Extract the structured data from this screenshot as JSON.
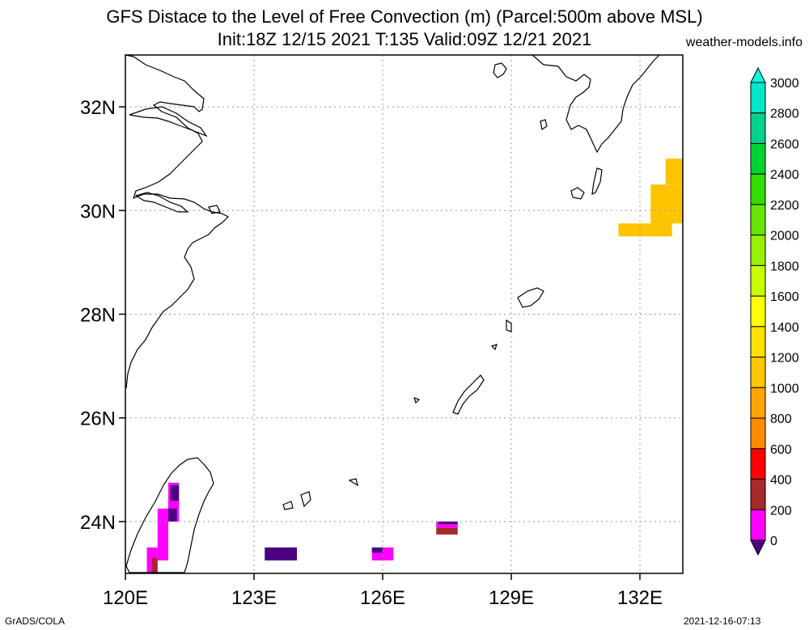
{
  "title_line1": "GFS Distace to the Level of Free Convection (m) (Parcel:500m above MSL)",
  "title_line2": "Init:18Z 12/15 2021 T:135 Valid:09Z 12/21 2021",
  "credit": "weather-models.info",
  "footer_left": "GrADS/COLA",
  "footer_right": "2021-12-16-07:13",
  "map": {
    "lon_range": [
      120,
      133
    ],
    "lat_range": [
      23,
      33
    ],
    "lon_ticks": [
      {
        "value": 120,
        "label": "120E"
      },
      {
        "value": 123,
        "label": "123E"
      },
      {
        "value": 126,
        "label": "126E"
      },
      {
        "value": 129,
        "label": "129E"
      },
      {
        "value": 132,
        "label": "132E"
      }
    ],
    "lat_ticks": [
      {
        "value": 24,
        "label": "24N"
      },
      {
        "value": 26,
        "label": "26N"
      },
      {
        "value": 28,
        "label": "28N"
      },
      {
        "value": 30,
        "label": "30N"
      },
      {
        "value": 32,
        "label": "32N"
      }
    ],
    "grid": true
  },
  "colorbar": {
    "levels": [
      {
        "label": "0",
        "color": "#4b0082"
      },
      {
        "label": "200",
        "color": "#ff00ff"
      },
      {
        "label": "400",
        "color": "#a52a2a"
      },
      {
        "label": "600",
        "color": "#ff0000"
      },
      {
        "label": "800",
        "color": "#ff8c00"
      },
      {
        "label": "1000",
        "color": "#ffa500"
      },
      {
        "label": "1200",
        "color": "#ffc800"
      },
      {
        "label": "1400",
        "color": "#ffe000"
      },
      {
        "label": "1600",
        "color": "#ffff00"
      },
      {
        "label": "1800",
        "color": "#c8ff00"
      },
      {
        "label": "2000",
        "color": "#96f000"
      },
      {
        "label": "2200",
        "color": "#64e600"
      },
      {
        "label": "2400",
        "color": "#32dc00"
      },
      {
        "label": "2600",
        "color": "#00d232"
      },
      {
        "label": "2800",
        "color": "#00d28c"
      },
      {
        "label": "3000",
        "color": "#00e6c8"
      }
    ],
    "top_color": "#00ffe0"
  },
  "field_cells": [
    {
      "lon": [
        131.5,
        132.75
      ],
      "lat": [
        29.5,
        29.75
      ],
      "color": "#ffc400"
    },
    {
      "lon": [
        132.25,
        133.0
      ],
      "lat": [
        29.75,
        30.5
      ],
      "color": "#ffc400"
    },
    {
      "lon": [
        132.6,
        133.0
      ],
      "lat": [
        30.5,
        31.0
      ],
      "color": "#ffc400"
    },
    {
      "lon": [
        121.0,
        121.25
      ],
      "lat": [
        24.0,
        24.75
      ],
      "color": "#ff00ff"
    },
    {
      "lon": [
        121.0,
        121.2
      ],
      "lat": [
        24.0,
        24.25
      ],
      "color": "#4b0082"
    },
    {
      "lon": [
        121.05,
        121.25
      ],
      "lat": [
        24.4,
        24.7
      ],
      "color": "#4b0082"
    },
    {
      "lon": [
        120.75,
        121.0
      ],
      "lat": [
        23.25,
        24.25
      ],
      "color": "#ff00ff"
    },
    {
      "lon": [
        120.5,
        120.75
      ],
      "lat": [
        23.0,
        23.5
      ],
      "color": "#ff00ff"
    },
    {
      "lon": [
        120.62,
        120.75
      ],
      "lat": [
        23.0,
        23.3
      ],
      "color": "#a52a2a"
    },
    {
      "lon": [
        123.25,
        124.0
      ],
      "lat": [
        23.25,
        23.5
      ],
      "color": "#4b0082"
    },
    {
      "lon": [
        125.75,
        126.25
      ],
      "lat": [
        23.25,
        23.5
      ],
      "color": "#ff00ff"
    },
    {
      "lon": [
        125.75,
        126.0
      ],
      "lat": [
        23.4,
        23.5
      ],
      "color": "#4b0082"
    },
    {
      "lon": [
        127.25,
        127.75
      ],
      "lat": [
        23.75,
        23.88
      ],
      "color": "#a52a2a"
    },
    {
      "lon": [
        127.25,
        127.75
      ],
      "lat": [
        23.88,
        24.0
      ],
      "color": "#ff00ff"
    },
    {
      "lon": [
        127.3,
        127.75
      ],
      "lat": [
        23.95,
        24.0
      ],
      "color": "#4b0082"
    }
  ]
}
